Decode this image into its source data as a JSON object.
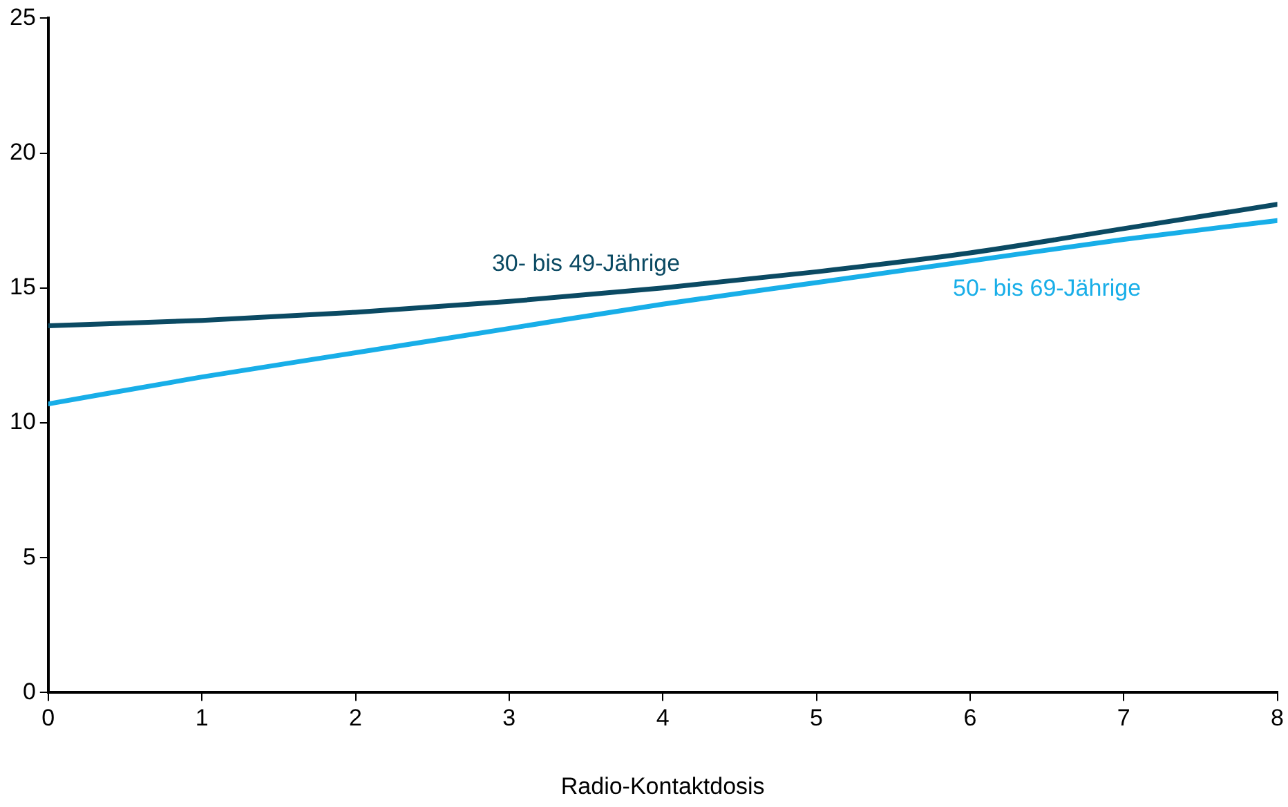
{
  "chart_data": {
    "type": "line",
    "xlabel": "Radio-Kontaktdosis",
    "x": [
      0,
      1,
      2,
      3,
      4,
      5,
      6,
      7,
      8
    ],
    "series": [
      {
        "name": "30- bis 49-Jährige",
        "color": "#0b4a63",
        "values": [
          13.6,
          13.8,
          14.1,
          14.5,
          15.0,
          15.6,
          16.3,
          17.2,
          18.1
        ]
      },
      {
        "name": "50- bis 69-Jährige",
        "color": "#18aee8",
        "values": [
          10.7,
          11.7,
          12.6,
          13.5,
          14.4,
          15.2,
          16.0,
          16.8,
          17.5
        ]
      }
    ],
    "xlim": [
      0,
      8
    ],
    "xticks": [
      0,
      1,
      2,
      3,
      4,
      5,
      6,
      7,
      8
    ],
    "ylim": [
      0,
      25
    ],
    "yticks": [
      0,
      5,
      10,
      15,
      20,
      25
    ],
    "grid": false,
    "legend": false,
    "marker": "none",
    "line_style": "solid"
  }
}
